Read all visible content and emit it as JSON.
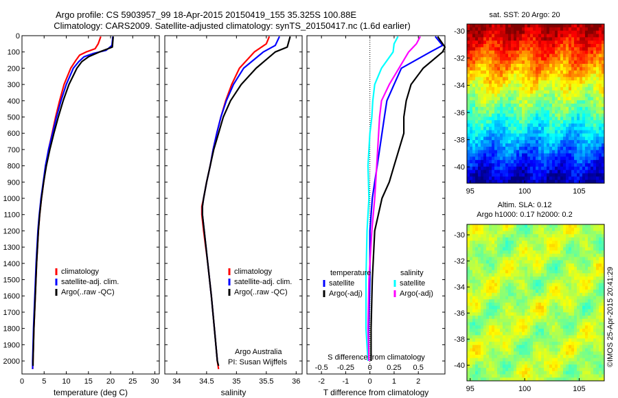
{
  "header": {
    "line1": "Argo profile: CS 5903957_99 18-Apr-2015 20150419_155 35.325S 100.88E",
    "line2": "Climatology: CARS2009. Satellite-adjusted climatology: synTS_20150417.nc (1.6d earlier)"
  },
  "credit": "©IMOS 25-Apr-2015 20:41:29",
  "colors": {
    "red": "#ff0000",
    "blue": "#0000ff",
    "black": "#000000",
    "cyan": "#00ffff",
    "magenta": "#ff00ff"
  },
  "chart_data": [
    {
      "id": "temperature",
      "type": "line",
      "xlabel": "temperature (deg C)",
      "xlim": [
        0,
        31
      ],
      "ylim": [
        0,
        2080
      ],
      "xticks": [
        0,
        5,
        10,
        15,
        20,
        25,
        30
      ],
      "yticks": [
        0,
        100,
        200,
        300,
        400,
        500,
        600,
        700,
        800,
        900,
        1000,
        1100,
        1200,
        1300,
        1400,
        1500,
        1600,
        1700,
        1800,
        1900,
        2000
      ],
      "legend": {
        "position": "lower-middle",
        "entries": [
          "climatology",
          "satellite-adj. clim.",
          "Argo(..raw -QC)"
        ]
      },
      "series": [
        {
          "name": "climatology",
          "color": "red",
          "depth": [
            5,
            50,
            80,
            100,
            120,
            150,
            200,
            300,
            400,
            500,
            600,
            700,
            800,
            900,
            1000,
            1100,
            1200,
            1400,
            1600,
            1800,
            2000,
            2050
          ],
          "values": [
            17.8,
            17.2,
            16.5,
            14.5,
            13.0,
            12.2,
            11.0,
            9.5,
            8.5,
            7.6,
            6.8,
            6.0,
            5.4,
            4.9,
            4.4,
            4.0,
            3.7,
            3.3,
            3.0,
            2.7,
            2.5,
            2.4
          ]
        },
        {
          "name": "satellite-adj. clim.",
          "color": "blue",
          "depth": [
            5,
            60,
            90,
            110,
            130,
            160,
            200,
            300,
            400,
            500,
            600,
            700,
            800,
            900,
            1000,
            1100,
            1200,
            1400,
            1600,
            1800,
            2000,
            2050
          ],
          "values": [
            20.5,
            20.3,
            19.0,
            16.0,
            14.0,
            12.8,
            11.6,
            10.0,
            8.8,
            7.8,
            6.9,
            6.0,
            5.3,
            4.8,
            4.3,
            3.9,
            3.6,
            3.2,
            2.9,
            2.6,
            2.4,
            2.4
          ]
        },
        {
          "name": "Argo(..raw -QC)",
          "color": "black",
          "depth": [
            5,
            70,
            100,
            130,
            160,
            200,
            300,
            400,
            500,
            600,
            700,
            800,
            900,
            1000,
            1100,
            1200,
            1400,
            1600,
            1800,
            2000,
            2030
          ],
          "values": [
            20.6,
            20.4,
            17.5,
            15.0,
            13.5,
            12.4,
            10.6,
            9.3,
            8.2,
            7.2,
            6.3,
            5.5,
            4.9,
            4.4,
            4.0,
            3.7,
            3.3,
            3.0,
            2.7,
            2.5,
            2.5
          ]
        }
      ]
    },
    {
      "id": "salinity",
      "type": "line",
      "xlabel": "salinity",
      "xlim": [
        33.8,
        36.1
      ],
      "ylim": [
        0,
        2080
      ],
      "xticks": [
        34,
        34.5,
        35,
        35.5,
        36
      ],
      "legend": {
        "position": "lower-right",
        "entries": [
          "climatology",
          "satellite-adj. clim.",
          "Argo(..raw -QC)"
        ]
      },
      "annotations": [
        "Argo Australia",
        "PI: Susan Wijffels"
      ],
      "series": [
        {
          "name": "climatology",
          "color": "red",
          "depth": [
            5,
            50,
            100,
            200,
            300,
            400,
            500,
            600,
            700,
            800,
            900,
            1000,
            1050,
            1100,
            1200,
            1400,
            1600,
            1800,
            2000,
            2050
          ],
          "values": [
            35.55,
            35.5,
            35.3,
            35.05,
            34.92,
            34.82,
            34.74,
            34.67,
            34.61,
            34.56,
            34.5,
            34.45,
            34.42,
            34.42,
            34.45,
            34.52,
            34.58,
            34.63,
            34.68,
            34.7
          ]
        },
        {
          "name": "satellite-adj. clim.",
          "color": "blue",
          "depth": [
            5,
            60,
            100,
            200,
            300,
            400,
            500,
            600,
            700,
            800,
            900,
            1000,
            1050,
            1100,
            1200,
            1400,
            1600,
            1800,
            2000
          ],
          "values": [
            35.72,
            35.65,
            35.45,
            35.12,
            34.95,
            34.83,
            34.74,
            34.67,
            34.61,
            34.56,
            34.5,
            34.45,
            34.43,
            34.43,
            34.46,
            34.52,
            34.58,
            34.63,
            34.68
          ]
        },
        {
          "name": "Argo(..raw -QC)",
          "color": "black",
          "depth": [
            5,
            70,
            100,
            200,
            300,
            400,
            500,
            600,
            700,
            800,
            900,
            1000,
            1050,
            1100,
            1200,
            1400,
            1600,
            1800,
            2000,
            2030
          ],
          "values": [
            35.9,
            35.85,
            35.65,
            35.33,
            35.08,
            34.9,
            34.78,
            34.7,
            34.62,
            34.56,
            34.5,
            34.45,
            34.43,
            34.43,
            34.46,
            34.52,
            34.58,
            34.63,
            34.68,
            34.7
          ]
        }
      ]
    },
    {
      "id": "differences",
      "type": "line",
      "xlabel": "T difference from climatology",
      "xlabel_top": "S difference from climatology",
      "xlim": [
        -2.6,
        3.1
      ],
      "ylim": [
        0,
        2080
      ],
      "xticks": [
        -2,
        -1,
        0,
        1,
        2
      ],
      "xticks_s": [
        -0.5,
        -0.25,
        0,
        0.25,
        0.5
      ],
      "legend": {
        "position": "lower",
        "temperature_header": "temperature",
        "salinity_header": "salinity"
      },
      "series": [
        {
          "name": "satellite",
          "group": "temperature",
          "color": "blue",
          "depth": [
            5,
            60,
            100,
            200,
            300,
            400,
            500,
            600,
            700,
            800,
            900,
            1000,
            1200,
            1500,
            1800,
            2000
          ],
          "values": [
            2.7,
            3.0,
            2.5,
            1.3,
            1.0,
            0.7,
            0.6,
            0.5,
            0.4,
            0.3,
            0.2,
            0.1,
            0.0,
            0.0,
            -0.05,
            -0.05
          ]
        },
        {
          "name": "Argo(-adj)",
          "group": "temperature",
          "color": "black",
          "depth": [
            5,
            70,
            100,
            200,
            300,
            400,
            500,
            600,
            700,
            800,
            900,
            1000,
            1200,
            1500,
            1800,
            2000
          ],
          "values": [
            2.8,
            3.1,
            3.0,
            2.2,
            1.7,
            1.5,
            1.4,
            1.4,
            1.2,
            1.0,
            0.8,
            0.5,
            0.2,
            0.1,
            0.05,
            0.05
          ]
        },
        {
          "name": "satellite",
          "group": "salinity",
          "color": "cyan",
          "depth": [
            5,
            50,
            100,
            200,
            300,
            400,
            500,
            600,
            800,
            1000,
            1200,
            1500,
            1800,
            2000
          ],
          "values": [
            0.29,
            0.25,
            0.24,
            0.12,
            0.05,
            0.03,
            0.02,
            0.0,
            -0.02,
            -0.01,
            -0.03,
            -0.04,
            -0.04,
            -0.02
          ]
        },
        {
          "name": "Argo(-adj)",
          "group": "salinity",
          "color": "magenta",
          "depth": [
            5,
            50,
            100,
            200,
            300,
            400,
            500,
            600,
            800,
            1000,
            1200,
            1500,
            1800,
            2000
          ],
          "values": [
            0.52,
            0.48,
            0.4,
            0.3,
            0.2,
            0.12,
            0.1,
            0.09,
            0.07,
            0.05,
            0.02,
            -0.01,
            -0.02,
            -0.01
          ]
        }
      ]
    },
    {
      "id": "sst-map",
      "type": "heatmap",
      "title": "sat. SST: 20 Argo: 20",
      "xlim": [
        94.7,
        107.3
      ],
      "ylim": [
        -41.2,
        -29.5
      ],
      "xticks": [
        95,
        100,
        105
      ],
      "yticks": [
        -30,
        -32,
        -34,
        -36,
        -38,
        -40
      ]
    },
    {
      "id": "sla-map",
      "type": "heatmap",
      "title_line1": "Altim. SLA: 0.12",
      "title_line2": "Argo h1000: 0.17 h2000: 0.2",
      "xlim": [
        94.7,
        107.3
      ],
      "ylim": [
        -41.2,
        -29.2
      ],
      "xticks": [
        95,
        100,
        105
      ],
      "yticks": [
        -30,
        -32,
        -34,
        -36,
        -38,
        -40
      ]
    }
  ]
}
